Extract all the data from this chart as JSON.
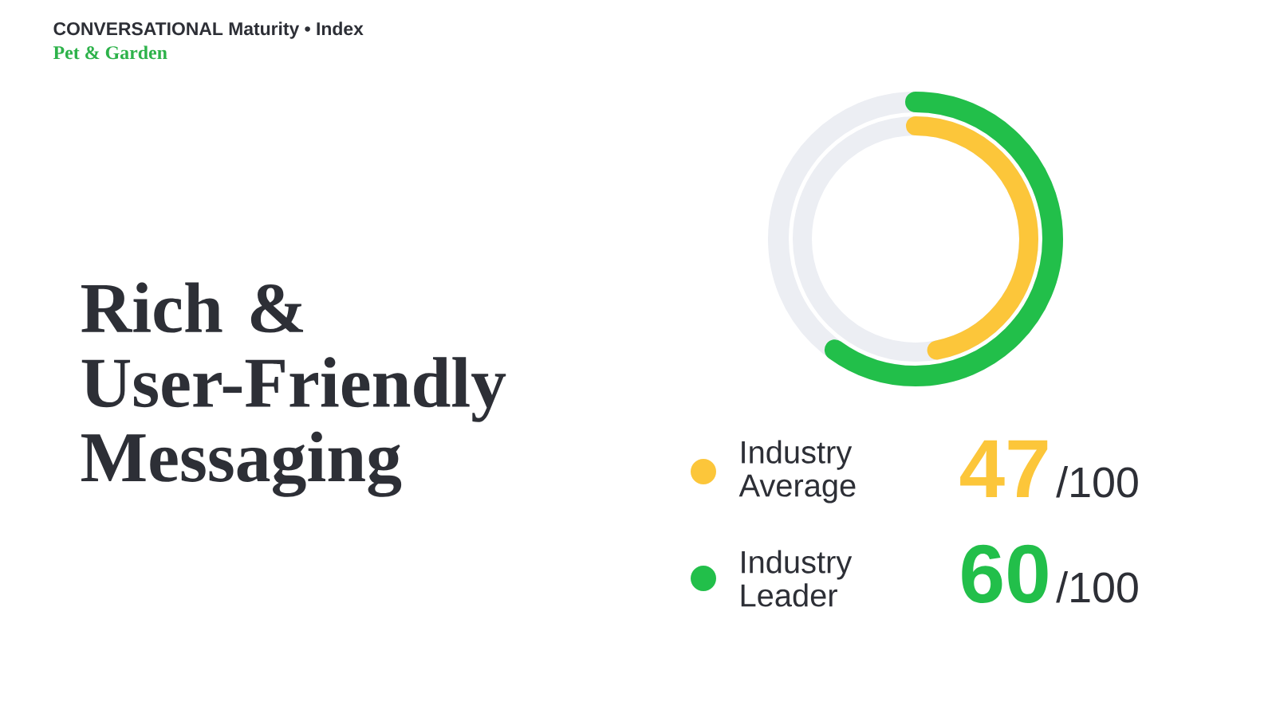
{
  "chart_data": {
    "type": "other",
    "title": "Rich & User-Friendly Messaging",
    "subtitle": "Pet & Garden",
    "categories": [
      "Industry Average",
      "Industry Leader"
    ],
    "values": [
      47,
      60
    ],
    "colors": [
      "#fcc63a",
      "#22bf4a"
    ],
    "data_labels": true,
    "annotations": [
      "CONVERSATIONAL Maturity • Index",
      "/100",
      "/100"
    ]
  }
}
